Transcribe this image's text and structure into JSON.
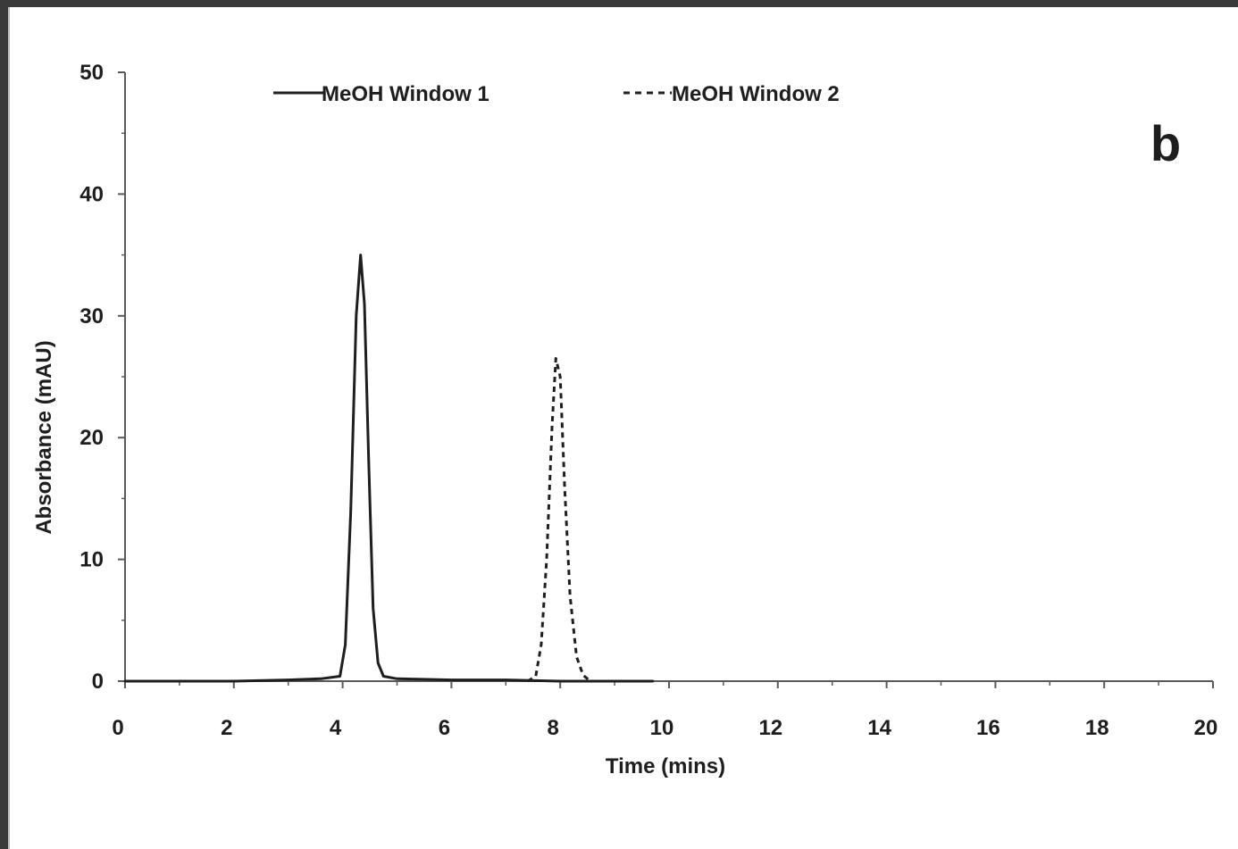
{
  "chart_data": {
    "type": "line",
    "panel_label": "b",
    "xlabel": "Time (mins)",
    "ylabel": "Absorbance (mAU)",
    "xlim": [
      0,
      20
    ],
    "ylim": [
      0,
      50
    ],
    "x_ticks": [
      0,
      2,
      4,
      6,
      8,
      10,
      12,
      14,
      16,
      18,
      20
    ],
    "y_ticks": [
      0,
      10,
      20,
      30,
      40,
      50
    ],
    "grid": false,
    "legend_position": "top",
    "series": [
      {
        "name": "MeOH Window 1",
        "line_style": "solid",
        "color": "#1e1e1e",
        "x": [
          0.0,
          1.0,
          2.0,
          3.0,
          3.6,
          3.95,
          4.05,
          4.15,
          4.25,
          4.33,
          4.4,
          4.48,
          4.56,
          4.65,
          4.75,
          5.0,
          6.0,
          7.0,
          8.0,
          9.0,
          9.7
        ],
        "y": [
          0.0,
          0.0,
          0.0,
          0.1,
          0.2,
          0.4,
          3.0,
          14.0,
          30.0,
          35.0,
          31.0,
          18.0,
          6.0,
          1.5,
          0.4,
          0.2,
          0.1,
          0.1,
          0.0,
          0.0,
          0.0
        ]
      },
      {
        "name": "MeOH Window 2",
        "line_style": "dashed",
        "color": "#1e1e1e",
        "x": [
          7.4,
          7.55,
          7.65,
          7.75,
          7.85,
          7.92,
          8.0,
          8.08,
          8.18,
          8.3,
          8.42,
          8.55
        ],
        "y": [
          0.0,
          0.4,
          3.0,
          10.0,
          21.0,
          26.5,
          25.0,
          16.0,
          7.0,
          2.0,
          0.5,
          0.0
        ]
      }
    ]
  }
}
